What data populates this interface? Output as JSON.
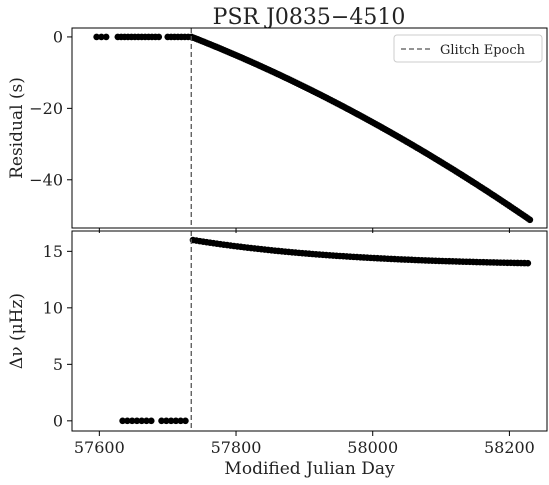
{
  "chart_data": {
    "type": "scatter",
    "title": "PSR J0835−4510",
    "xlabel": "Modified Julian Day",
    "xlim": [
      57560,
      58255
    ],
    "xticks": [
      57600,
      57800,
      58000,
      58200
    ],
    "glitch_epoch": 57734.5,
    "legend": {
      "label": "Glitch Epoch",
      "position": "top-right"
    },
    "grid": false,
    "panels": [
      {
        "id": "residual",
        "ylabel": "Residual (s)",
        "ylim": [
          -53.5,
          2.5
        ],
        "yticks": [
          0,
          -20,
          -40
        ],
        "series": [
          {
            "points": [
              [
                57596,
                0
              ],
              [
                57603,
                0
              ],
              [
                57610,
                0
              ],
              [
                57627,
                0
              ],
              [
                57632,
                0
              ],
              [
                57637,
                0
              ],
              [
                57642,
                0
              ],
              [
                57647,
                0
              ],
              [
                57652,
                0
              ],
              [
                57657,
                0
              ],
              [
                57662,
                0
              ],
              [
                57667,
                0
              ],
              [
                57672,
                0
              ],
              [
                57677,
                0
              ],
              [
                57682,
                0
              ],
              [
                57687,
                0
              ],
              [
                57700,
                0
              ],
              [
                57705,
                0
              ],
              [
                57710,
                0
              ],
              [
                57715,
                0
              ],
              [
                57720,
                0
              ],
              [
                57725,
                0
              ],
              [
                57730,
                0
              ]
            ]
          },
          {
            "model": "post-glitch-residual",
            "x_start": 57735,
            "x_end": 58230,
            "step": 3,
            "y_at_end": -51.2,
            "quadratic_coeff": -5.7e-05
          }
        ]
      },
      {
        "id": "delta-nu",
        "ylabel": "Δν (μHz)",
        "ylim": [
          -0.9,
          16.8
        ],
        "yticks": [
          0,
          5,
          10,
          15
        ],
        "series": [
          {
            "points": [
              [
                57634,
                0
              ],
              [
                57641,
                0
              ],
              [
                57648,
                0
              ],
              [
                57655,
                0
              ],
              [
                57662,
                0
              ],
              [
                57669,
                0
              ],
              [
                57676,
                0
              ],
              [
                57691,
                0
              ],
              [
                57698,
                0
              ],
              [
                57705,
                0
              ],
              [
                57712,
                0
              ],
              [
                57719,
                0
              ],
              [
                57726,
                0
              ]
            ]
          },
          {
            "model": "post-glitch-exp-decay",
            "x_start": 57737,
            "x_end": 58230,
            "step": 5,
            "y_start": 16.0,
            "y_end": 13.95,
            "recovery_tau_days": 260,
            "asymptote": 13.3
          }
        ]
      }
    ]
  }
}
